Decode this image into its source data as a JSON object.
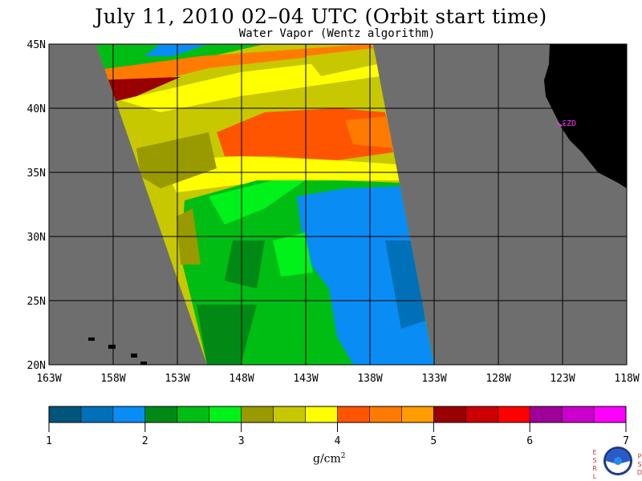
{
  "title": "July 11, 2010  02–04 UTC  (Orbit start time)",
  "subtitle": "Water Vapor (Wentz algorithm)",
  "map": {
    "lat_labels": [
      "45N",
      "40N",
      "35N",
      "30N",
      "25N",
      "20N"
    ],
    "lat_values": [
      45,
      40,
      35,
      30,
      25,
      20
    ],
    "lon_labels": [
      "163W",
      "158W",
      "153W",
      "148W",
      "143W",
      "138W",
      "133W",
      "128W",
      "123W",
      "118W"
    ],
    "lon_values": [
      -163,
      -158,
      -153,
      -148,
      -143,
      -138,
      -133,
      -128,
      -123,
      -118
    ],
    "lon_range": [
      -163,
      -118
    ],
    "lat_range": [
      20,
      45
    ],
    "ocean_color": "#6e6e6e",
    "land_color": "#000000",
    "station_label": "CZD"
  },
  "colorbar": {
    "tick_labels": [
      "1",
      "2",
      "3",
      "4",
      "5",
      "6",
      "7"
    ],
    "range": [
      1,
      7
    ],
    "colors": [
      "#00557a",
      "#0070b8",
      "#0a8cf5",
      "#008a15",
      "#00bd14",
      "#00f21a",
      "#999900",
      "#c8c800",
      "#ffff00",
      "#ff5500",
      "#ff7a00",
      "#ff9c00",
      "#990000",
      "#cc0000",
      "#ff0000",
      "#a0009a",
      "#cc00cc",
      "#ff00ff"
    ],
    "units": "g/cm",
    "units_sup": "2"
  },
  "logo": {
    "left_letters": [
      "E",
      "S",
      "R",
      "L"
    ],
    "right_letters": [
      "P",
      "S",
      "D"
    ],
    "center": "NOAA"
  }
}
